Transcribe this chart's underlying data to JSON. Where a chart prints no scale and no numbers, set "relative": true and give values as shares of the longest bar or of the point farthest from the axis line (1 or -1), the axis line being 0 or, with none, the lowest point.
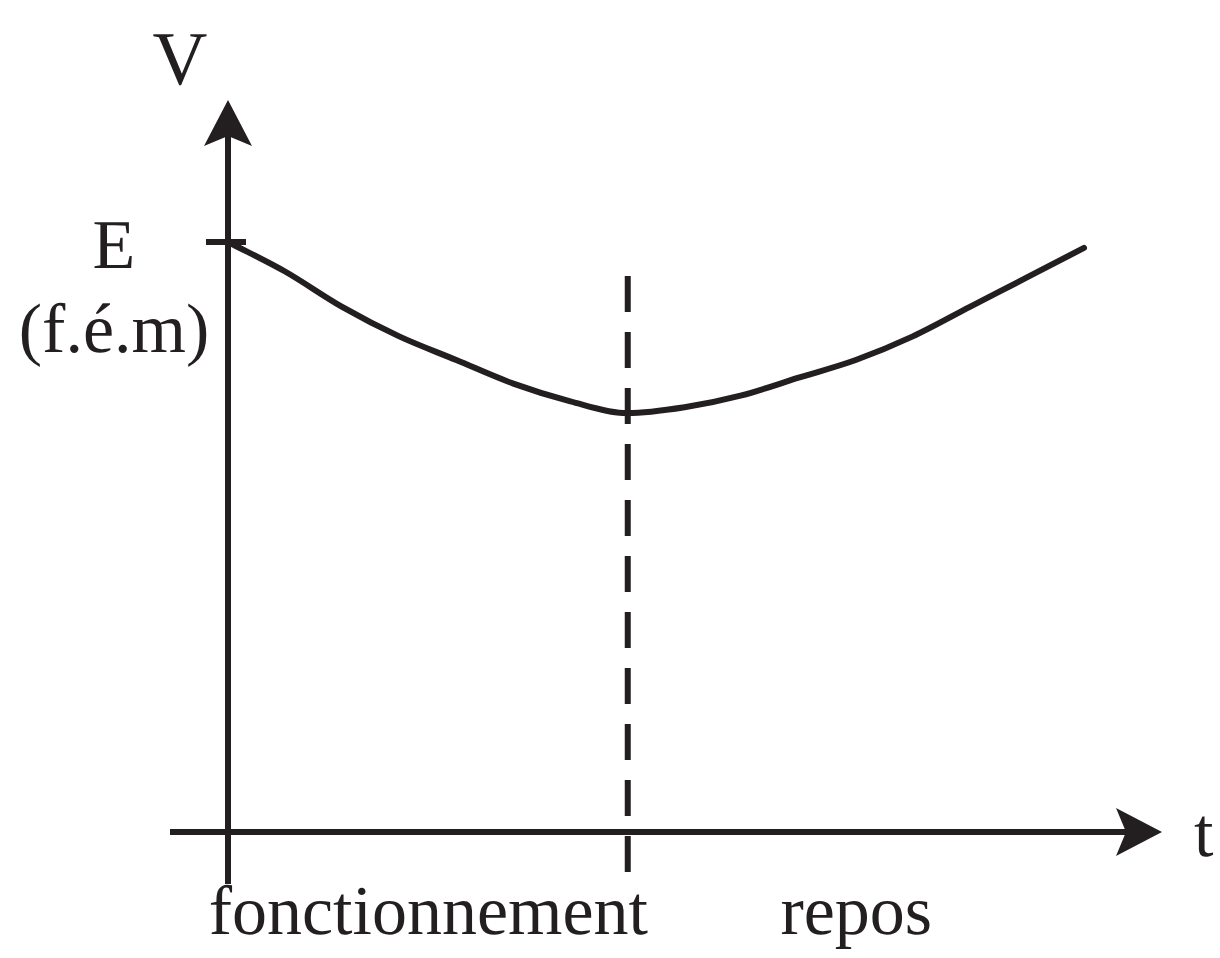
{
  "chart_data": {
    "type": "line",
    "relative": true,
    "xlabel": "t",
    "ylabel": "V",
    "categories": [
      null,
      null,
      null,
      null,
      null,
      null,
      null,
      null,
      null,
      null,
      null,
      null,
      null,
      null,
      null,
      null
    ],
    "values": [
      1.0,
      0.95,
      0.89,
      0.84,
      0.8,
      0.76,
      0.73,
      0.71,
      0.72,
      0.74,
      0.77,
      0.8,
      0.84,
      0.89,
      0.94,
      0.99
    ],
    "color": "#231f20",
    "line_style": "solid",
    "annotations": [
      "E\n(f.é.m)",
      "fonctionnement",
      "repos"
    ]
  }
}
